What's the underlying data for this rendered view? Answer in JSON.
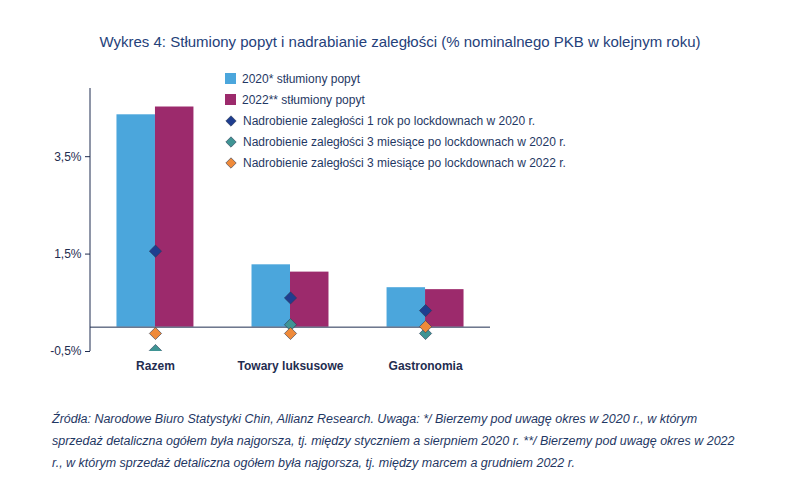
{
  "chart_data": {
    "type": "bar",
    "title": "Wykres 4: Stłumiony popyt i nadrabianie zaległości (% nominalnego PKB w kolejnym roku)",
    "categories": [
      "Razem",
      "Towary luksusowe",
      "Gastronomia"
    ],
    "series": [
      {
        "name": "2020* stłumiony popyt",
        "type": "bar",
        "color": "#4ba6dc",
        "values": [
          4.36,
          1.28,
          0.81
        ]
      },
      {
        "name": "2022** stłumiony popyt",
        "type": "bar",
        "color": "#9c2a6c",
        "values": [
          4.52,
          1.13,
          0.77
        ]
      },
      {
        "name": "Nadrobienie zaległości 1 rok po lockdownach w 2020 r.",
        "type": "scatter",
        "marker": "diamond",
        "color": "#1f3d8f",
        "values": [
          1.56,
          0.6,
          0.34
        ]
      },
      {
        "name": "Nadrobienie zaległości 3 miesiące po lockdownach w 2020 r.",
        "type": "scatter",
        "marker": "diamond",
        "color": "#3f9494",
        "values": [
          -0.48,
          0.05,
          -0.13
        ]
      },
      {
        "name": "Nadrobienie zaległości 3 miesiące po lockdownach w 2022 r.",
        "type": "scatter",
        "marker": "diamond",
        "color": "#ef8a3a",
        "values": [
          -0.13,
          -0.13,
          0.01
        ]
      }
    ],
    "ylim": [
      -0.5,
      4.9
    ],
    "yticks": [
      {
        "value": -0.5,
        "label": "-0,5%"
      },
      {
        "value": 1.5,
        "label": "1,5%"
      },
      {
        "value": 3.5,
        "label": "3,5%"
      }
    ],
    "legend": "top-left",
    "caption": "Źródła: Narodowe Biuro Statystyki Chin, Allianz Research. Uwaga: */ Bierzemy pod uwagę okres w 2020 r., w którym sprzedaż detaliczna ogółem była najgorsza, tj. między styczniem a sierpniem 2020 r. **/ Bierzemy pod uwagę okres w 2022 r., w którym sprzedaż detaliczna ogółem była najgorsza, tj. między marcem a grudniem 2022 r."
  }
}
